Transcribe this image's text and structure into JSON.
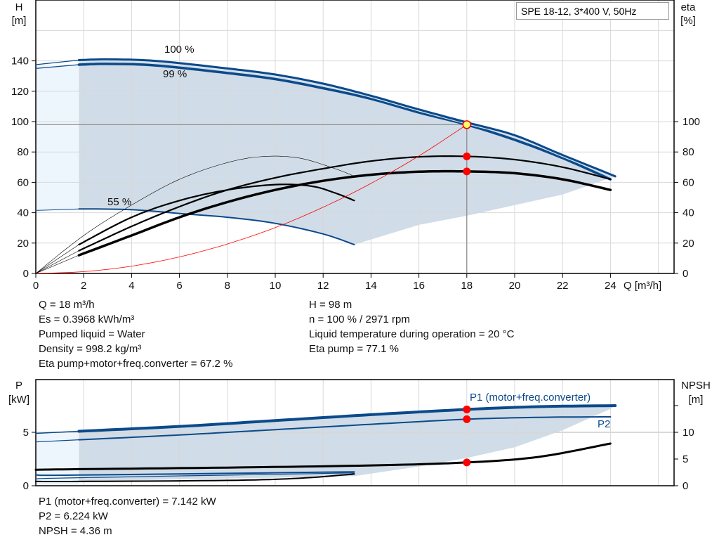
{
  "title": "SPE 18-12, 3*400 V, 50Hz",
  "info_left": [
    "Q = 18 m³/h",
    "Es = 0.3968 kWh/m³",
    "Pumped liquid = Water",
    "Density = 998.2 kg/m³",
    "Eta pump+motor+freq.converter = 67.2 %"
  ],
  "info_right": [
    "H = 98 m",
    "n = 100 % / 2971 rpm",
    "Liquid temperature during operation = 20 °C",
    "Eta pump = 77.1 %"
  ],
  "info_bottom": [
    "P1 (motor+freq.converter) = 7.142 kW",
    "P2 = 6.224 kW",
    "NPSH = 4.36 m"
  ],
  "colors": {
    "curve_blue": "#0b4a8b",
    "shade": "#d0dce7",
    "shade_light": "#eef6fd",
    "system": "#ff0000",
    "grid": "#d8d8d8",
    "point": "#ff0000",
    "duty": "#ffff66"
  },
  "chart_data": [
    {
      "type": "line",
      "id": "top",
      "ylabel_left": "H\n[m]",
      "ylabel_left_lines": [
        "H",
        "[m]"
      ],
      "ylabel_right_lines": [
        "eta",
        "[%]"
      ],
      "xlabel": "Q [m³/h]",
      "xlim": [
        0,
        26.6
      ],
      "ylim": [
        0,
        180
      ],
      "grid": true,
      "xticks": [
        0,
        2,
        4,
        6,
        8,
        10,
        12,
        14,
        16,
        18,
        20,
        22,
        24
      ],
      "yticks_left": [
        0,
        20,
        40,
        60,
        80,
        100,
        120,
        140
      ],
      "yticks_right": [
        0,
        20,
        40,
        60,
        80,
        100
      ],
      "annotations": [
        "100 %",
        "99 %",
        "55 %"
      ],
      "series": [
        {
          "role": "H 100%",
          "color": "#0b4a8b",
          "w": 3,
          "points": [
            [
              1.8,
              140.5
            ],
            [
              3,
              141
            ],
            [
              5,
              140
            ],
            [
              8,
              135
            ],
            [
              10,
              131
            ],
            [
              12,
              125
            ],
            [
              14,
              117
            ],
            [
              16,
              108
            ],
            [
              18,
              99.5
            ],
            [
              20,
              91
            ],
            [
              22,
              78
            ],
            [
              24.2,
              64
            ]
          ]
        },
        {
          "role": "H 100% ext",
          "color": "#0b4a8b",
          "w": 1.2,
          "points": [
            [
              0,
              137.5
            ],
            [
              1.8,
              140.5
            ]
          ]
        },
        {
          "role": "H 99%",
          "color": "#0b4a8b",
          "w": 3.5,
          "points": [
            [
              1.8,
              137.5
            ],
            [
              3,
              138
            ],
            [
              5,
              137
            ],
            [
              8,
              132
            ],
            [
              10,
              128
            ],
            [
              12,
              122
            ],
            [
              14,
              115
            ],
            [
              16,
              106
            ],
            [
              18,
              98
            ],
            [
              20,
              88
            ],
            [
              22,
              76
            ],
            [
              24,
              62
            ]
          ]
        },
        {
          "role": "H 99% ext",
          "color": "#0b4a8b",
          "w": 1.2,
          "points": [
            [
              0,
              135
            ],
            [
              1.8,
              137.5
            ]
          ]
        },
        {
          "role": "H 55%",
          "color": "#0b4a8b",
          "w": 2,
          "points": [
            [
              1.8,
              42.5
            ],
            [
              4,
              42
            ],
            [
              6,
              39.5
            ],
            [
              8,
              37
            ],
            [
              10,
              33
            ],
            [
              12,
              26
            ],
            [
              13.3,
              19
            ]
          ]
        },
        {
          "role": "H 55% ext",
          "color": "#0b4a8b",
          "w": 1,
          "points": [
            [
              0,
              41.5
            ],
            [
              1.8,
              42.5
            ]
          ]
        },
        {
          "role": "eta total",
          "color": "#000",
          "w": 3.5,
          "points": [
            [
              1.8,
              12
            ],
            [
              4,
              25
            ],
            [
              6,
              37
            ],
            [
              8,
              47
            ],
            [
              10,
              55
            ],
            [
              12,
              61
            ],
            [
              14,
              65
            ],
            [
              16,
              67
            ],
            [
              18,
              67.2
            ],
            [
              20,
              66
            ],
            [
              22,
              62
            ],
            [
              24,
              55
            ]
          ]
        },
        {
          "role": "eta pump",
          "color": "#000",
          "w": 2.2,
          "points": [
            [
              1.8,
              15
            ],
            [
              4,
              31
            ],
            [
              6,
              44
            ],
            [
              8,
              55
            ],
            [
              10,
              63
            ],
            [
              12,
              69
            ],
            [
              14,
              74
            ],
            [
              16,
              76.8
            ],
            [
              18,
              77.1
            ],
            [
              20,
              75
            ],
            [
              22,
              70
            ],
            [
              24,
              62
            ]
          ]
        },
        {
          "role": "eta 55%",
          "color": "#000",
          "w": 2.2,
          "points": [
            [
              1.8,
              19
            ],
            [
              4,
              37
            ],
            [
              6,
              48
            ],
            [
              8,
              55
            ],
            [
              10,
              58.5
            ],
            [
              11.5,
              57.5
            ],
            [
              12.5,
              53
            ],
            [
              13.3,
              48
            ]
          ]
        },
        {
          "role": "eta ideal",
          "color": "#000",
          "w": 0.6,
          "points": [
            [
              0,
              0
            ],
            [
              2,
              25
            ],
            [
              4,
              45
            ],
            [
              6,
              62
            ],
            [
              8,
              73
            ],
            [
              9.5,
              77
            ],
            [
              11,
              76
            ],
            [
              12.5,
              69
            ],
            [
              13.3,
              64
            ]
          ]
        },
        {
          "role": "eta ext a",
          "color": "#000",
          "w": 0.6,
          "points": [
            [
              0,
              0
            ],
            [
              1.8,
              19
            ]
          ]
        },
        {
          "role": "eta ext b",
          "color": "#000",
          "w": 0.6,
          "points": [
            [
              0,
              0
            ],
            [
              1.8,
              15
            ]
          ]
        },
        {
          "role": "eta ext c",
          "color": "#000",
          "w": 0.6,
          "points": [
            [
              0,
              0
            ],
            [
              1.8,
              12
            ]
          ]
        },
        {
          "role": "system curve",
          "color": "#ff0000",
          "w": 0.8,
          "points": [
            [
              0,
              0
            ],
            [
              2,
              1.2
            ],
            [
              4,
              4.8
            ],
            [
              6,
              10.9
            ],
            [
              8,
              19.4
            ],
            [
              10,
              30.2
            ],
            [
              12,
              43.6
            ],
            [
              14,
              59.3
            ],
            [
              16,
              77.4
            ],
            [
              18,
              98
            ]
          ]
        }
      ],
      "duty_point": {
        "q": 18,
        "h": 98
      },
      "points": [
        {
          "q": 18,
          "y": 77.1
        },
        {
          "q": 18,
          "y": 67.2
        }
      ]
    },
    {
      "type": "line",
      "id": "bottom",
      "ylabel_left_lines": [
        "P",
        "[kW]"
      ],
      "ylabel_right_lines": [
        "NPSH",
        "[m]"
      ],
      "xlim": [
        0,
        26.6
      ],
      "ylim_left": [
        0,
        9.9
      ],
      "ylim_right": [
        0,
        19.8
      ],
      "yticks_left": [
        0,
        5
      ],
      "yticks_right": [
        0,
        5,
        10
      ],
      "legend": [
        "P1 (motor+freq.converter)",
        "P2"
      ],
      "series": [
        {
          "role": "P1",
          "axis": "left",
          "color": "#0b4a8b",
          "w": 4,
          "points": [
            [
              1.8,
              5.1
            ],
            [
              6,
              5.55
            ],
            [
              10,
              6.1
            ],
            [
              14,
              6.65
            ],
            [
              18,
              7.142
            ],
            [
              21,
              7.4
            ],
            [
              24.2,
              7.5
            ]
          ]
        },
        {
          "role": "P1 ext",
          "axis": "left",
          "color": "#0b4a8b",
          "w": 1.5,
          "points": [
            [
              0,
              4.9
            ],
            [
              1.8,
              5.1
            ]
          ]
        },
        {
          "role": "P2",
          "axis": "left",
          "color": "#0b4a8b",
          "w": 2,
          "points": [
            [
              1.8,
              4.3
            ],
            [
              6,
              4.75
            ],
            [
              10,
              5.25
            ],
            [
              14,
              5.75
            ],
            [
              18,
              6.224
            ],
            [
              21,
              6.4
            ],
            [
              24,
              6.45
            ]
          ]
        },
        {
          "role": "P2 ext",
          "axis": "left",
          "color": "#0b4a8b",
          "w": 1.2,
          "points": [
            [
              0,
              4.1
            ],
            [
              1.8,
              4.3
            ]
          ]
        },
        {
          "role": "P 55% a",
          "axis": "left",
          "color": "#0b4a8b",
          "w": 2,
          "points": [
            [
              0,
              1.0
            ],
            [
              1.8,
              1.0
            ],
            [
              13.3,
              1.3
            ]
          ]
        },
        {
          "role": "P 55% b",
          "axis": "left",
          "color": "#0b4a8b",
          "w": 1.2,
          "points": [
            [
              0,
              0.65
            ],
            [
              1.8,
              0.75
            ],
            [
              13.3,
              1.2
            ]
          ]
        },
        {
          "role": "NPSH",
          "axis": "right",
          "color": "#000",
          "w": 3,
          "points": [
            [
              0,
              3.0
            ],
            [
              1.8,
              3.1
            ],
            [
              8,
              3.4
            ],
            [
              14,
              3.8
            ],
            [
              18,
              4.36
            ],
            [
              21,
              5.4
            ],
            [
              24,
              7.9
            ]
          ]
        },
        {
          "role": "NPSH 55%",
          "axis": "right",
          "color": "#000",
          "w": 2,
          "points": [
            [
              0,
              0.8
            ],
            [
              1.8,
              0.8
            ],
            [
              8,
              1.0
            ],
            [
              11,
              1.4
            ],
            [
              13.3,
              2.2
            ]
          ]
        }
      ],
      "points": [
        {
          "q": 18,
          "y": 7.142,
          "axis": "left"
        },
        {
          "q": 18,
          "y": 6.224,
          "axis": "left"
        },
        {
          "q": 18,
          "y": 4.36,
          "axis": "right"
        }
      ]
    }
  ]
}
